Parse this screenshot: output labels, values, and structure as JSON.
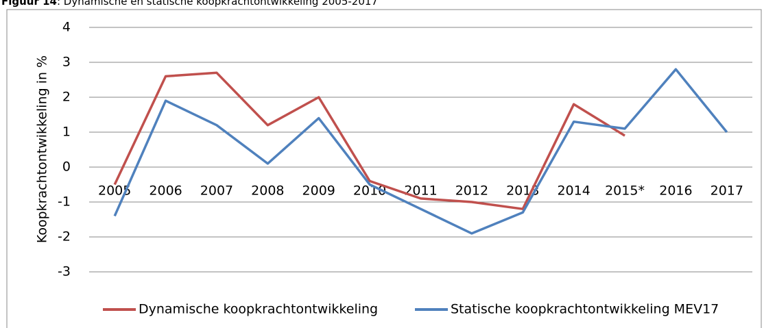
{
  "caption": {
    "label": "Figuur 14",
    "text": ": Dynamische en statische koopkrachtontwikkeling 2005-2017"
  },
  "chart_data": {
    "type": "line",
    "y_label": "Koopkrachtontwikkeling in %",
    "categories": [
      "2005",
      "2006",
      "2007",
      "2008",
      "2009",
      "2010",
      "2011",
      "2012",
      "2013",
      "2014",
      "2015*",
      "2016",
      "2017"
    ],
    "series": [
      {
        "name": "Dynamische koopkrachtontwikkeling",
        "color": "#c0504d",
        "values": [
          -0.5,
          2.6,
          2.7,
          1.2,
          2.0,
          -0.4,
          -0.9,
          -1.0,
          -1.2,
          1.8,
          0.9,
          null,
          null
        ]
      },
      {
        "name": "Statische koopkrachtontwikkeling MEV17",
        "color": "#4f81bd",
        "values": [
          -1.4,
          1.9,
          1.2,
          0.1,
          1.4,
          -0.5,
          -1.2,
          -1.9,
          -1.3,
          1.3,
          1.1,
          2.8,
          1.0
        ]
      }
    ],
    "ylim": [
      -3,
      4
    ],
    "yticks": [
      -3,
      -2,
      -1,
      0,
      1,
      2,
      3,
      4
    ],
    "grid": true,
    "legend": "bottom"
  }
}
